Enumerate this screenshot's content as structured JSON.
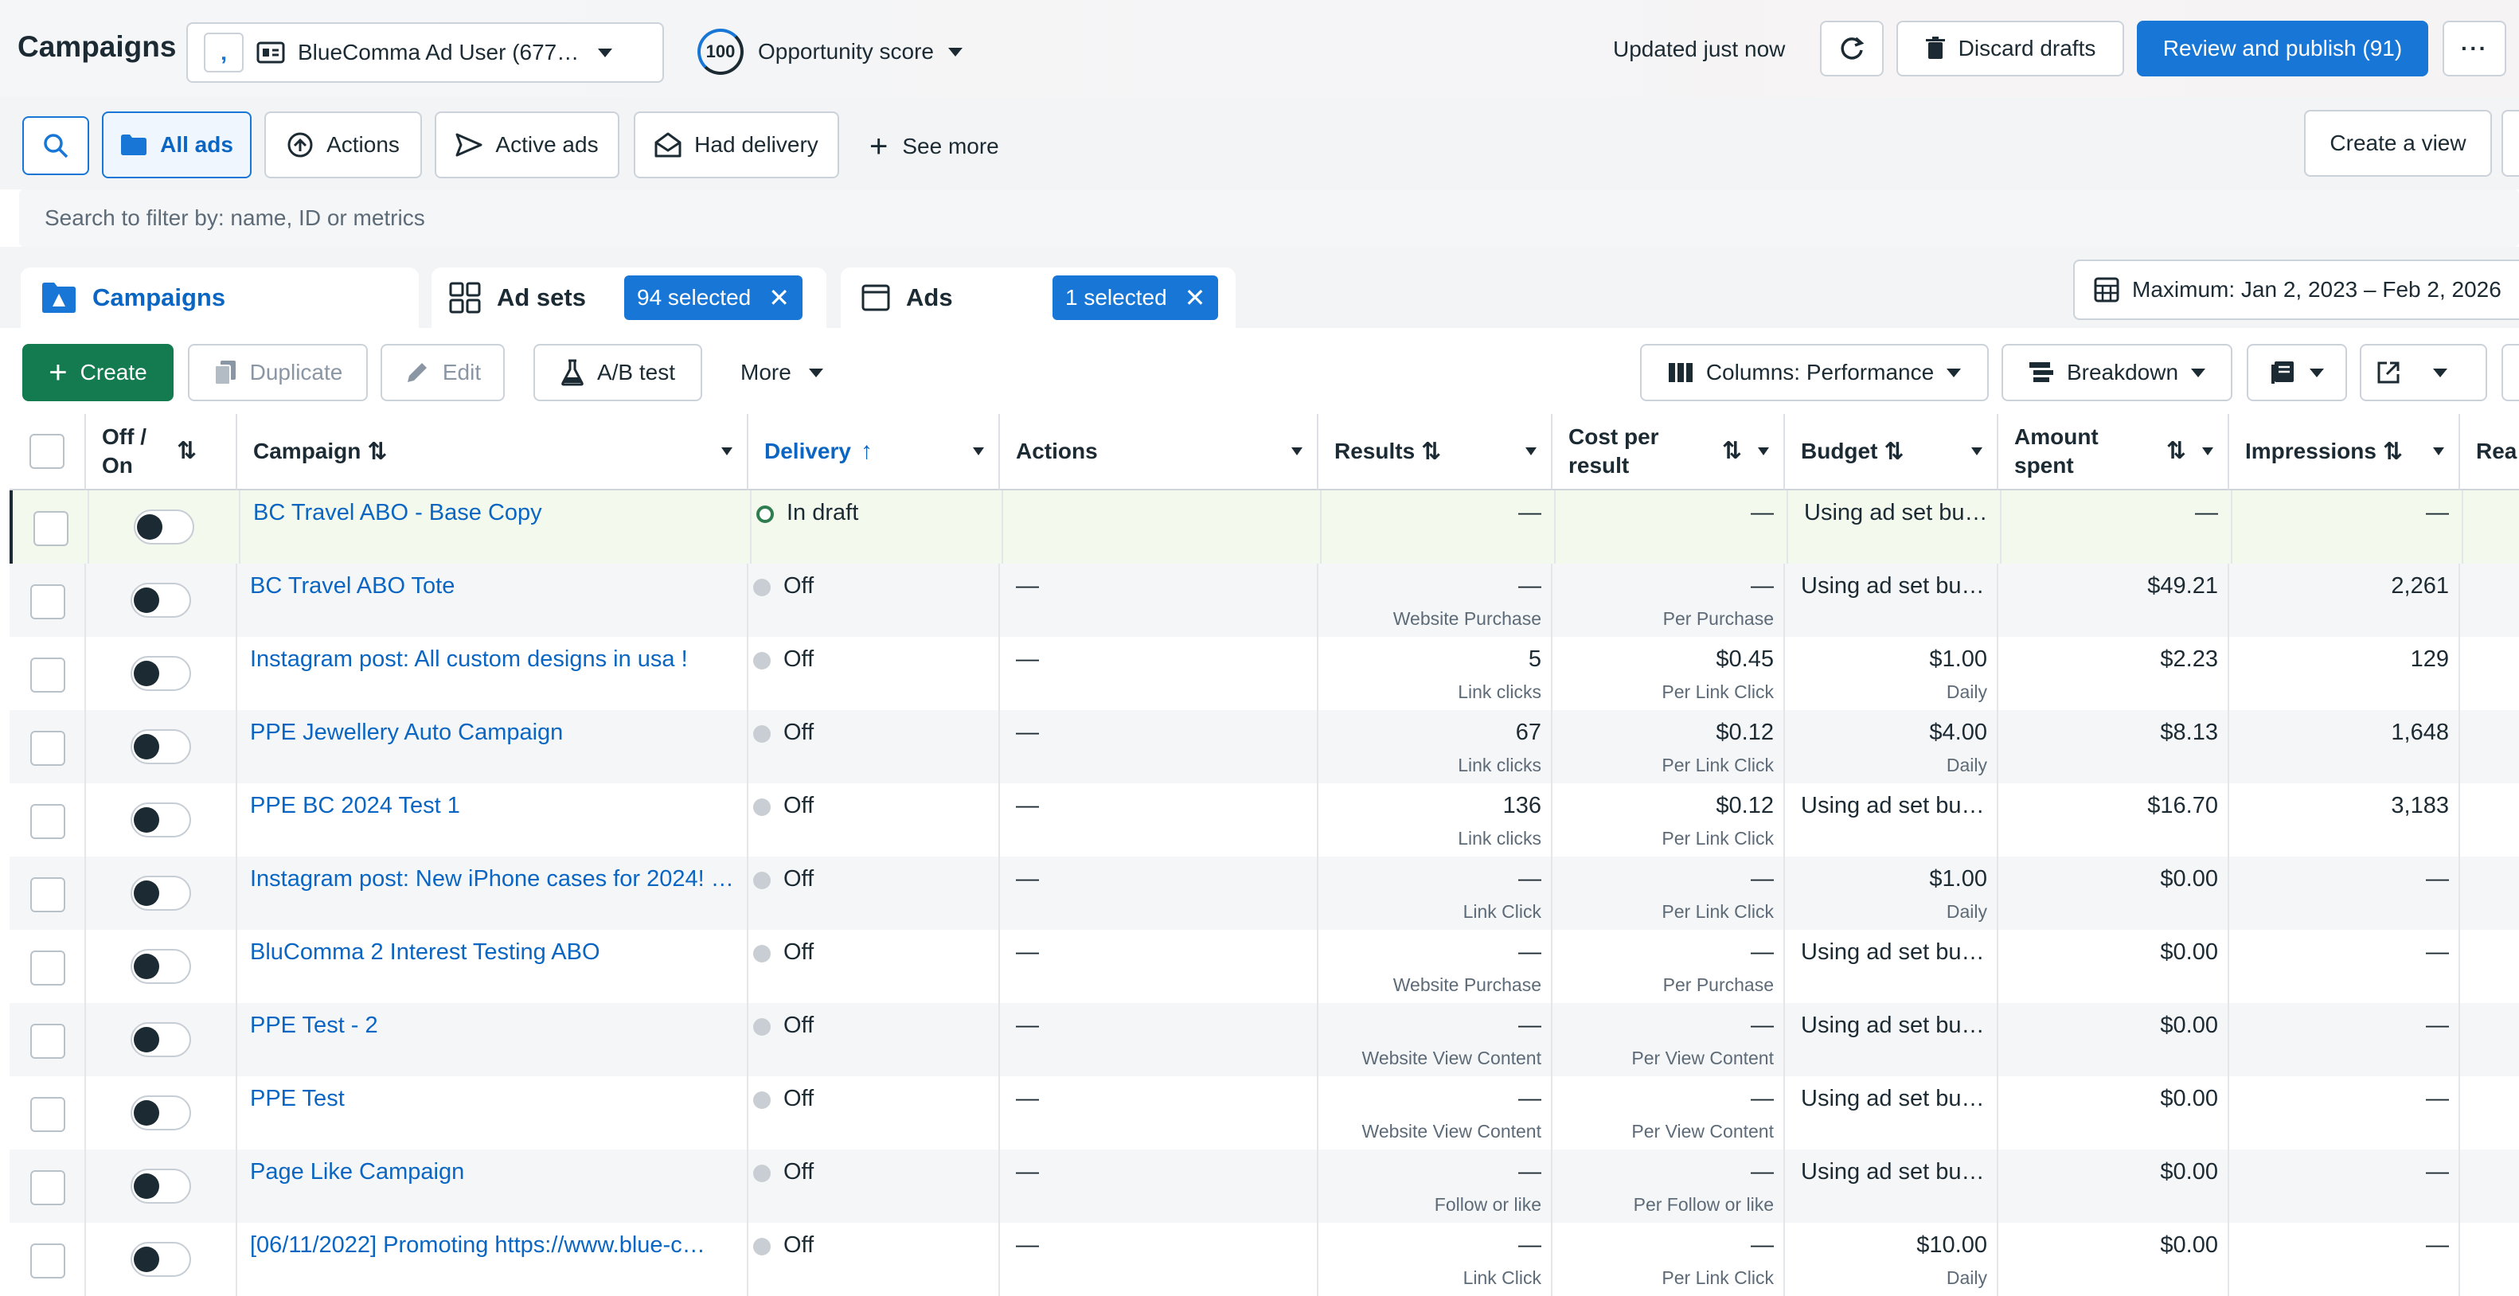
{
  "header": {
    "title": "Campaigns",
    "account_name": "BlueComma Ad User (677…",
    "opportunity_score": "100",
    "opportunity_label": "Opportunity score",
    "updated_text": "Updated just now",
    "discard_label": "Discard drafts",
    "publish_label": "Review and publish (91)",
    "more_label": "···"
  },
  "filters": {
    "all_ads": "All ads",
    "actions": "Actions",
    "active_ads": "Active ads",
    "had_delivery": "Had delivery",
    "see_more": "See more",
    "create_view": "Create a view",
    "search_placeholder": "Search to filter by: name, ID or metrics"
  },
  "tabs": {
    "campaigns": "Campaigns",
    "ad_sets": "Ad sets",
    "ad_sets_selected": "94 selected",
    "ads": "Ads",
    "ads_selected": "1 selected",
    "date_range": "Maximum: Jan 2, 2023 – Feb 2, 2026"
  },
  "toolbar": {
    "create": "Create",
    "duplicate": "Duplicate",
    "edit": "Edit",
    "ab_test": "A/B test",
    "more": "More",
    "columns": "Columns: Performance",
    "breakdown": "Breakdown"
  },
  "columns": {
    "off_on": "Off / On",
    "campaign": "Campaign",
    "delivery": "Delivery",
    "actions": "Actions",
    "results": "Results",
    "cost_per_result": "Cost per result",
    "budget": "Budget",
    "amount_spent": "Amount spent",
    "impressions": "Impressions",
    "reach": "Rea"
  },
  "rows": [
    {
      "campaign": "BC Travel ABO - Base Copy",
      "delivery": "In draft",
      "actions": "",
      "results": "—",
      "results_sub": "",
      "cpr": "—",
      "cpr_sub": "",
      "budget": "Using ad set bu…",
      "budget_sub": "",
      "spent": "—",
      "impressions": "—"
    },
    {
      "campaign": "BC Travel ABO Tote",
      "delivery": "Off",
      "actions": "—",
      "results": "—",
      "results_sub": "Website Purchase",
      "cpr": "—",
      "cpr_sub": "Per Purchase",
      "budget": "Using ad set bu…",
      "budget_sub": "",
      "spent": "$49.21",
      "impressions": "2,261"
    },
    {
      "campaign": "Instagram post: All custom designs in usa !",
      "delivery": "Off",
      "actions": "—",
      "results": "5",
      "results_sub": "Link clicks",
      "cpr": "$0.45",
      "cpr_sub": "Per Link Click",
      "budget": "$1.00",
      "budget_sub": "Daily",
      "spent": "$2.23",
      "impressions": "129"
    },
    {
      "campaign": "PPE Jewellery Auto Campaign",
      "delivery": "Off",
      "actions": "—",
      "results": "67",
      "results_sub": "Link clicks",
      "cpr": "$0.12",
      "cpr_sub": "Per Link Click",
      "budget": "$4.00",
      "budget_sub": "Daily",
      "spent": "$8.13",
      "impressions": "1,648"
    },
    {
      "campaign": "PPE BC 2024 Test 1",
      "delivery": "Off",
      "actions": "—",
      "results": "136",
      "results_sub": "Link clicks",
      "cpr": "$0.12",
      "cpr_sub": "Per Link Click",
      "budget": "Using ad set bu…",
      "budget_sub": "",
      "spent": "$16.70",
      "impressions": "3,183"
    },
    {
      "campaign": "Instagram post: New iPhone cases for 2024! …",
      "delivery": "Off",
      "actions": "—",
      "results": "—",
      "results_sub": "Link Click",
      "cpr": "—",
      "cpr_sub": "Per Link Click",
      "budget": "$1.00",
      "budget_sub": "Daily",
      "spent": "$0.00",
      "impressions": "—"
    },
    {
      "campaign": "BluComma 2 Interest Testing ABO",
      "delivery": "Off",
      "actions": "—",
      "results": "—",
      "results_sub": "Website Purchase",
      "cpr": "—",
      "cpr_sub": "Per Purchase",
      "budget": "Using ad set bu…",
      "budget_sub": "",
      "spent": "$0.00",
      "impressions": "—"
    },
    {
      "campaign": "PPE Test - 2",
      "delivery": "Off",
      "actions": "—",
      "results": "—",
      "results_sub": "Website View Content",
      "cpr": "—",
      "cpr_sub": "Per View Content",
      "budget": "Using ad set bu…",
      "budget_sub": "",
      "spent": "$0.00",
      "impressions": "—"
    },
    {
      "campaign": "PPE Test",
      "delivery": "Off",
      "actions": "—",
      "results": "—",
      "results_sub": "Website View Content",
      "cpr": "—",
      "cpr_sub": "Per View Content",
      "budget": "Using ad set bu…",
      "budget_sub": "",
      "spent": "$0.00",
      "impressions": "—"
    },
    {
      "campaign": "Page Like Campaign",
      "delivery": "Off",
      "actions": "—",
      "results": "—",
      "results_sub": "Follow or like",
      "cpr": "—",
      "cpr_sub": "Per Follow or like",
      "budget": "Using ad set bu…",
      "budget_sub": "",
      "spent": "$0.00",
      "impressions": "—"
    },
    {
      "campaign": "[06/11/2022] Promoting https://www.blue-c…",
      "delivery": "Off",
      "actions": "—",
      "results": "—",
      "results_sub": "Link Click",
      "cpr": "—",
      "cpr_sub": "Per Link Click",
      "budget": "$10.00",
      "budget_sub": "Daily",
      "spent": "$0.00",
      "impressions": "—"
    }
  ],
  "colors": {
    "accent": "#1877d6",
    "link": "#0a66c2",
    "create_green": "#137b4f",
    "draft_green": "#2e7d4f"
  }
}
